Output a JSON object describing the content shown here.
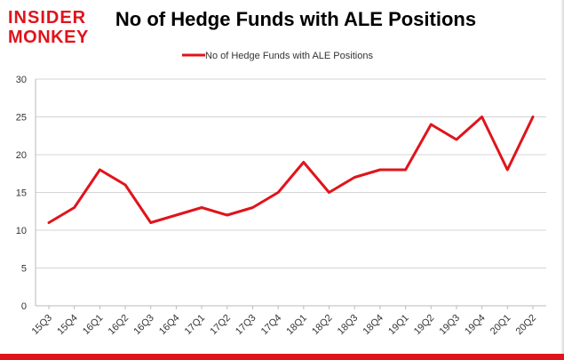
{
  "logo": {
    "line1": "INSIDER",
    "line2": "MONKEY",
    "text_color": "#e0141b",
    "stripe_color": "#e0141b"
  },
  "chart_data": {
    "type": "line",
    "title": "No of Hedge Funds with ALE Positions",
    "xlabel": "",
    "ylabel": "",
    "categories": [
      "15Q3",
      "15Q4",
      "16Q1",
      "16Q2",
      "16Q3",
      "16Q4",
      "17Q1",
      "17Q2",
      "17Q3",
      "17Q4",
      "18Q1",
      "18Q2",
      "18Q3",
      "18Q4",
      "19Q1",
      "19Q2",
      "19Q3",
      "19Q4",
      "20Q1",
      "20Q2"
    ],
    "series": [
      {
        "name": "No of Hedge Funds with ALE Positions",
        "color": "#e0141b",
        "values": [
          11,
          13,
          18,
          16,
          11,
          12,
          13,
          12,
          13,
          15,
          19,
          15,
          17,
          18,
          18,
          24,
          22,
          25,
          18,
          25
        ]
      }
    ],
    "ylim": [
      0,
      30
    ],
    "yticks": [
      "0",
      "5",
      "10",
      "15",
      "20",
      "25",
      "30"
    ],
    "grid": true,
    "legend": "top-center"
  },
  "colors": {
    "grid": "#d4d4d4",
    "axis": "#bbbbbb",
    "tick_label": "#333333",
    "accent": "#e0141b"
  }
}
